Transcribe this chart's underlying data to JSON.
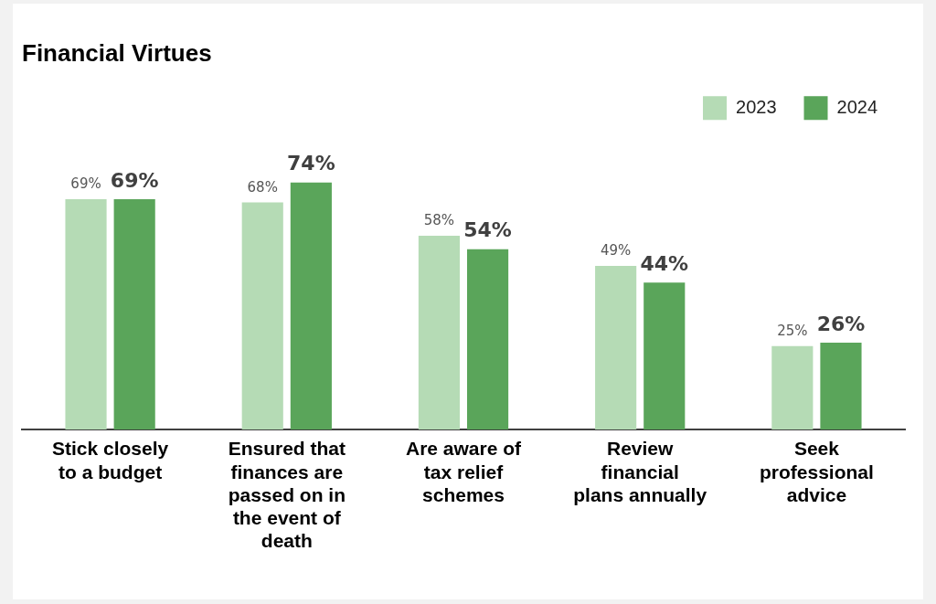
{
  "chart_data": {
    "type": "bar",
    "title": "Financial Virtues",
    "categories": [
      "Stick closely to a budget",
      "Ensured that finances are passed on in the event of death",
      "Are aware of tax relief schemes",
      "Review financial plans annually",
      "Seek professional advice"
    ],
    "series": [
      {
        "name": "2023",
        "color": "#b5dbb5",
        "values": [
          69,
          68,
          58,
          49,
          25
        ],
        "value_labels": [
          "69%",
          "68%",
          "58%",
          "49%",
          "25%"
        ]
      },
      {
        "name": "2024",
        "color": "#5aa55a",
        "values": [
          69,
          74,
          54,
          44,
          26
        ],
        "value_labels": [
          "69%",
          "74%",
          "54%",
          "44%",
          "26%"
        ]
      }
    ],
    "legend": "top right",
    "grid": false,
    "tick_labels": "x"
  }
}
